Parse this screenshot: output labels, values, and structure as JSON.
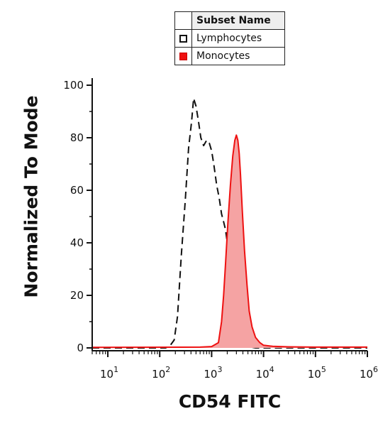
{
  "legend": {
    "header": "Subset Name",
    "items": [
      {
        "label": "Lymphocytes",
        "style": "open",
        "color": "#111111"
      },
      {
        "label": "Monocytes",
        "style": "filled",
        "color": "#ee1111"
      }
    ]
  },
  "chart_data": {
    "type": "area",
    "xlabel": "CD54 FITC",
    "ylabel": "Normalized To Mode",
    "xscale": "log",
    "xlim": [
      5,
      1000000
    ],
    "ylim": [
      0,
      100
    ],
    "yticks": [
      0,
      20,
      40,
      60,
      80,
      100
    ],
    "xticks": [
      {
        "base": "10",
        "exp": "1"
      },
      {
        "base": "10",
        "exp": "2"
      },
      {
        "base": "10",
        "exp": "3"
      },
      {
        "base": "10",
        "exp": "4"
      },
      {
        "base": "10",
        "exp": "5"
      },
      {
        "base": "10",
        "exp": "6"
      }
    ],
    "grid": false,
    "legend_position": "top-center",
    "series": [
      {
        "name": "Lymphocytes",
        "style": "dashed-line",
        "color": "#111111",
        "points": [
          [
            5,
            0
          ],
          [
            100,
            0
          ],
          [
            130,
            0
          ],
          [
            160,
            1
          ],
          [
            190,
            3
          ],
          [
            220,
            12
          ],
          [
            260,
            35
          ],
          [
            310,
            56
          ],
          [
            360,
            76
          ],
          [
            410,
            86
          ],
          [
            450,
            95
          ],
          [
            500,
            92
          ],
          [
            560,
            86
          ],
          [
            620,
            80
          ],
          [
            700,
            77
          ],
          [
            800,
            79
          ],
          [
            900,
            78
          ],
          [
            1000,
            75
          ],
          [
            1100,
            70
          ],
          [
            1250,
            62
          ],
          [
            1400,
            57
          ],
          [
            1550,
            51
          ],
          [
            1700,
            48
          ],
          [
            1850,
            45
          ],
          [
            2000,
            40
          ],
          [
            2150,
            32
          ],
          [
            2300,
            22
          ],
          [
            2600,
            14
          ],
          [
            3000,
            7
          ],
          [
            3500,
            2
          ],
          [
            4200,
            1
          ],
          [
            5000,
            0.5
          ],
          [
            7000,
            0
          ],
          [
            1000000,
            0
          ]
        ]
      },
      {
        "name": "Monocytes",
        "style": "filled-area",
        "color": "#ee1111",
        "fill": "#f5a3a3",
        "points": [
          [
            5,
            0.2
          ],
          [
            600,
            0.3
          ],
          [
            1000,
            0.5
          ],
          [
            1350,
            2
          ],
          [
            1550,
            10
          ],
          [
            1700,
            20
          ],
          [
            1850,
            32
          ],
          [
            2050,
            47
          ],
          [
            2300,
            62
          ],
          [
            2550,
            73
          ],
          [
            2800,
            79
          ],
          [
            3000,
            81
          ],
          [
            3200,
            79
          ],
          [
            3400,
            74
          ],
          [
            3600,
            66
          ],
          [
            3900,
            52
          ],
          [
            4300,
            37
          ],
          [
            4800,
            24
          ],
          [
            5300,
            14
          ],
          [
            6000,
            8
          ],
          [
            7000,
            4
          ],
          [
            8500,
            2
          ],
          [
            10000,
            1
          ],
          [
            15000,
            0.6
          ],
          [
            30000,
            0.4
          ],
          [
            100000,
            0.3
          ],
          [
            1000000,
            0.3
          ]
        ]
      }
    ]
  }
}
